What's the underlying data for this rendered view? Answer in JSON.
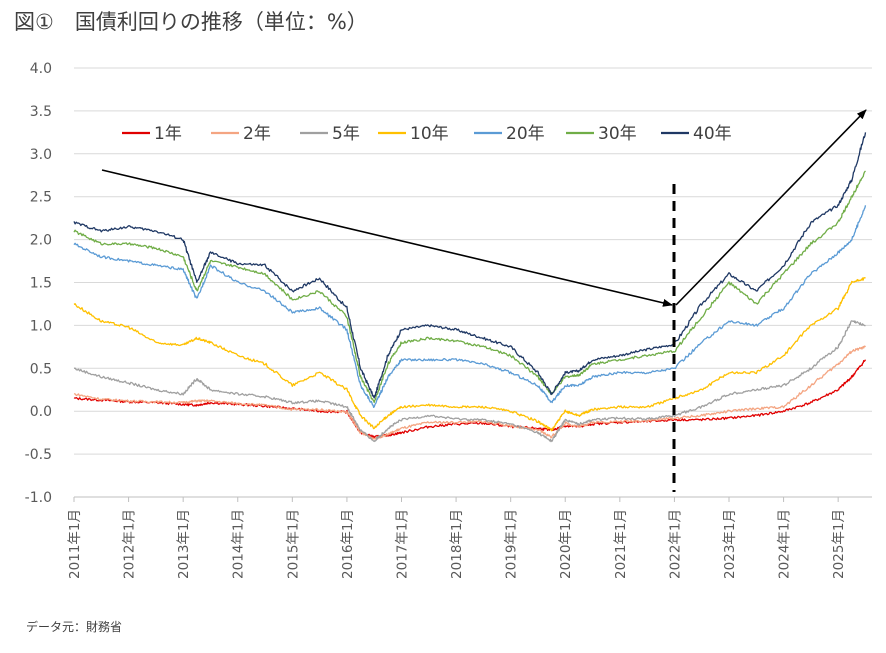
{
  "header": {
    "title": "図①　国債利回りの推移（単位：%）"
  },
  "footer": {
    "source": "データ元：財務省"
  },
  "chart_data": {
    "type": "line",
    "title": "図①　国債利回りの推移（単位：%）",
    "ylim": [
      -1.0,
      4.0
    ],
    "yticks": [
      "4.0",
      "3.5",
      "3.0",
      "2.5",
      "2.0",
      "1.5",
      "1.0",
      "0.5",
      "0.0",
      "-0.5",
      "-1.0"
    ],
    "xticks": [
      "2011年1月",
      "2012年1月",
      "2013年1月",
      "2014年1月",
      "2015年1月",
      "2016年1月",
      "2017年1月",
      "2018年1月",
      "2019年1月",
      "2020年1月",
      "2021年1月",
      "2022年1月",
      "2023年1月",
      "2024年1月",
      "2025年1月"
    ],
    "x": [
      2011.0,
      2011.5,
      2012.0,
      2012.5,
      2013.0,
      2013.25,
      2013.5,
      2014.0,
      2014.5,
      2015.0,
      2015.5,
      2016.0,
      2016.25,
      2016.5,
      2016.75,
      2017.0,
      2017.5,
      2018.0,
      2018.5,
      2019.0,
      2019.5,
      2019.75,
      2020.0,
      2020.25,
      2020.5,
      2021.0,
      2021.5,
      2022.0,
      2022.5,
      2023.0,
      2023.5,
      2024.0,
      2024.5,
      2025.0,
      2025.25,
      2025.5
    ],
    "series": [
      {
        "name": "1年",
        "color": "#e00000",
        "values": [
          0.15,
          0.13,
          0.11,
          0.1,
          0.08,
          0.07,
          0.1,
          0.08,
          0.06,
          0.03,
          0.0,
          -0.01,
          -0.25,
          -0.3,
          -0.28,
          -0.25,
          -0.18,
          -0.15,
          -0.14,
          -0.18,
          -0.2,
          -0.22,
          -0.17,
          -0.18,
          -0.15,
          -0.13,
          -0.12,
          -0.1,
          -0.1,
          -0.08,
          -0.05,
          0.0,
          0.1,
          0.25,
          0.4,
          0.6
        ]
      },
      {
        "name": "2年",
        "color": "#f4a582",
        "values": [
          0.2,
          0.14,
          0.12,
          0.11,
          0.1,
          0.12,
          0.12,
          0.09,
          0.07,
          0.02,
          0.02,
          -0.01,
          -0.25,
          -0.32,
          -0.27,
          -0.2,
          -0.13,
          -0.13,
          -0.12,
          -0.17,
          -0.22,
          -0.3,
          -0.14,
          -0.18,
          -0.13,
          -0.12,
          -0.11,
          -0.08,
          -0.05,
          0.0,
          0.03,
          0.05,
          0.3,
          0.55,
          0.7,
          0.75
        ]
      },
      {
        "name": "5年",
        "color": "#a0a0a0",
        "values": [
          0.5,
          0.4,
          0.33,
          0.25,
          0.2,
          0.38,
          0.25,
          0.2,
          0.17,
          0.1,
          0.12,
          0.05,
          -0.22,
          -0.35,
          -0.2,
          -0.1,
          -0.05,
          -0.09,
          -0.1,
          -0.15,
          -0.25,
          -0.35,
          -0.1,
          -0.15,
          -0.1,
          -0.08,
          -0.09,
          -0.05,
          0.05,
          0.2,
          0.25,
          0.3,
          0.5,
          0.75,
          1.05,
          1.0
        ]
      },
      {
        "name": "10年",
        "color": "#ffc000",
        "values": [
          1.25,
          1.05,
          0.98,
          0.8,
          0.77,
          0.85,
          0.8,
          0.65,
          0.55,
          0.3,
          0.45,
          0.25,
          -0.05,
          -0.2,
          -0.05,
          0.05,
          0.07,
          0.05,
          0.05,
          0.0,
          -0.12,
          -0.22,
          0.0,
          -0.05,
          0.02,
          0.05,
          0.05,
          0.15,
          0.25,
          0.45,
          0.45,
          0.65,
          1.0,
          1.2,
          1.5,
          1.55
        ]
      },
      {
        "name": "20年",
        "color": "#5b9bd5",
        "values": [
          1.95,
          1.8,
          1.75,
          1.7,
          1.65,
          1.3,
          1.7,
          1.5,
          1.4,
          1.15,
          1.2,
          0.95,
          0.3,
          0.05,
          0.4,
          0.6,
          0.6,
          0.6,
          0.55,
          0.45,
          0.3,
          0.1,
          0.3,
          0.3,
          0.4,
          0.45,
          0.45,
          0.5,
          0.8,
          1.05,
          1.0,
          1.2,
          1.6,
          1.85,
          2.0,
          2.4
        ]
      },
      {
        "name": "30年",
        "color": "#70ad47",
        "values": [
          2.1,
          1.95,
          1.95,
          1.9,
          1.8,
          1.4,
          1.75,
          1.68,
          1.6,
          1.3,
          1.4,
          1.1,
          0.4,
          0.1,
          0.55,
          0.8,
          0.85,
          0.82,
          0.75,
          0.65,
          0.4,
          0.2,
          0.4,
          0.42,
          0.55,
          0.6,
          0.65,
          0.7,
          1.1,
          1.5,
          1.25,
          1.6,
          1.95,
          2.2,
          2.5,
          2.8
        ]
      },
      {
        "name": "40年",
        "color": "#1f3864",
        "values": [
          2.2,
          2.1,
          2.15,
          2.1,
          2.0,
          1.5,
          1.85,
          1.72,
          1.7,
          1.4,
          1.55,
          1.2,
          0.5,
          0.15,
          0.65,
          0.95,
          1.0,
          0.95,
          0.85,
          0.75,
          0.45,
          0.2,
          0.45,
          0.47,
          0.6,
          0.65,
          0.72,
          0.78,
          1.25,
          1.6,
          1.4,
          1.7,
          2.2,
          2.4,
          2.7,
          3.25
        ]
      }
    ]
  }
}
